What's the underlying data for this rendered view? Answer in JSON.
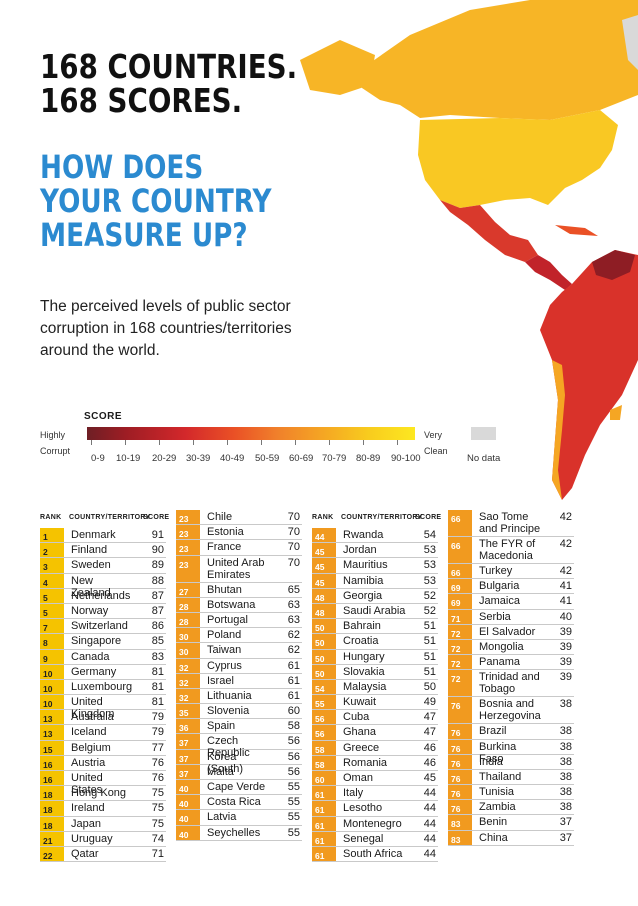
{
  "headline": {
    "line1": "168 COUNTRIES.",
    "line2": "168 SCORES."
  },
  "question": {
    "line1": "HOW DOES",
    "line2": "YOUR COUNTRY",
    "line3": "MEASURE UP?"
  },
  "intro": {
    "line1": "The perceived levels of public sector",
    "line2": "corruption in 168 countries/territories",
    "line3": "around the world."
  },
  "legend": {
    "title": "SCORE",
    "low_line1": "Highly",
    "low_line2": "Corrupt",
    "high_line1": "Very",
    "high_line2": "Clean",
    "ranges": [
      "0-9",
      "10-19",
      "20-29",
      "30-39",
      "40-49",
      "50-59",
      "60-69",
      "70-79",
      "80-89",
      "90-100"
    ],
    "no_data": "No data",
    "colors": [
      "#6e1f25",
      "#9e1d24",
      "#c1232a",
      "#d9322a",
      "#ea5126",
      "#f0802b",
      "#f5a623",
      "#f8cc1e",
      "#fbe11f",
      "#fde820"
    ],
    "no_data_color": "#d9d9d9"
  },
  "table_headers": {
    "rank": "RANK",
    "country": "COUNTRY/TERRITORY",
    "score": "SCORE"
  },
  "colors": {
    "rank_high": "#f5c300",
    "rank_mid": "#f19a1f",
    "heading_blue": "#2b8ad0"
  },
  "columns": [
    [
      {
        "rank": "1",
        "name": "Denmark",
        "score": "91"
      },
      {
        "rank": "2",
        "name": "Finland",
        "score": "90"
      },
      {
        "rank": "3",
        "name": "Sweden",
        "score": "89"
      },
      {
        "rank": "4",
        "name": "New Zealand",
        "score": "88"
      },
      {
        "rank": "5",
        "name": "Netherlands",
        "score": "87"
      },
      {
        "rank": "5",
        "name": "Norway",
        "score": "87"
      },
      {
        "rank": "7",
        "name": "Switzerland",
        "score": "86"
      },
      {
        "rank": "8",
        "name": "Singapore",
        "score": "85"
      },
      {
        "rank": "9",
        "name": "Canada",
        "score": "83"
      },
      {
        "rank": "10",
        "name": "Germany",
        "score": "81"
      },
      {
        "rank": "10",
        "name": "Luxembourg",
        "score": "81"
      },
      {
        "rank": "10",
        "name": "United Kingdom",
        "score": "81"
      },
      {
        "rank": "13",
        "name": "Australia",
        "score": "79"
      },
      {
        "rank": "13",
        "name": "Iceland",
        "score": "79"
      },
      {
        "rank": "15",
        "name": "Belgium",
        "score": "77"
      },
      {
        "rank": "16",
        "name": "Austria",
        "score": "76"
      },
      {
        "rank": "16",
        "name": "United States",
        "score": "76"
      },
      {
        "rank": "18",
        "name": "Hong Kong",
        "score": "75"
      },
      {
        "rank": "18",
        "name": "Ireland",
        "score": "75"
      },
      {
        "rank": "18",
        "name": "Japan",
        "score": "75"
      },
      {
        "rank": "21",
        "name": "Uruguay",
        "score": "74"
      },
      {
        "rank": "22",
        "name": "Qatar",
        "score": "71"
      }
    ],
    [
      {
        "rank": "23",
        "name": "Chile",
        "score": "70"
      },
      {
        "rank": "23",
        "name": "Estonia",
        "score": "70"
      },
      {
        "rank": "23",
        "name": "France",
        "score": "70"
      },
      {
        "rank": "23",
        "name": "United Arab Emirates",
        "score": "70"
      },
      {
        "rank": "27",
        "name": "Bhutan",
        "score": "65"
      },
      {
        "rank": "28",
        "name": "Botswana",
        "score": "63"
      },
      {
        "rank": "28",
        "name": "Portugal",
        "score": "63"
      },
      {
        "rank": "30",
        "name": "Poland",
        "score": "62"
      },
      {
        "rank": "30",
        "name": "Taiwan",
        "score": "62"
      },
      {
        "rank": "32",
        "name": "Cyprus",
        "score": "61"
      },
      {
        "rank": "32",
        "name": "Israel",
        "score": "61"
      },
      {
        "rank": "32",
        "name": "Lithuania",
        "score": "61"
      },
      {
        "rank": "35",
        "name": "Slovenia",
        "score": "60"
      },
      {
        "rank": "36",
        "name": "Spain",
        "score": "58"
      },
      {
        "rank": "37",
        "name": "Czech Republic",
        "score": "56"
      },
      {
        "rank": "37",
        "name": "Korea (South)",
        "score": "56"
      },
      {
        "rank": "37",
        "name": "Malta",
        "score": "56"
      },
      {
        "rank": "40",
        "name": "Cape Verde",
        "score": "55"
      },
      {
        "rank": "40",
        "name": "Costa Rica",
        "score": "55"
      },
      {
        "rank": "40",
        "name": "Latvia",
        "score": "55"
      },
      {
        "rank": "40",
        "name": "Seychelles",
        "score": "55"
      }
    ],
    [
      {
        "rank": "44",
        "name": "Rwanda",
        "score": "54"
      },
      {
        "rank": "45",
        "name": "Jordan",
        "score": "53"
      },
      {
        "rank": "45",
        "name": "Mauritius",
        "score": "53"
      },
      {
        "rank": "45",
        "name": "Namibia",
        "score": "53"
      },
      {
        "rank": "48",
        "name": "Georgia",
        "score": "52"
      },
      {
        "rank": "48",
        "name": "Saudi Arabia",
        "score": "52"
      },
      {
        "rank": "50",
        "name": "Bahrain",
        "score": "51"
      },
      {
        "rank": "50",
        "name": "Croatia",
        "score": "51"
      },
      {
        "rank": "50",
        "name": "Hungary",
        "score": "51"
      },
      {
        "rank": "50",
        "name": "Slovakia",
        "score": "51"
      },
      {
        "rank": "54",
        "name": "Malaysia",
        "score": "50"
      },
      {
        "rank": "55",
        "name": "Kuwait",
        "score": "49"
      },
      {
        "rank": "56",
        "name": "Cuba",
        "score": "47"
      },
      {
        "rank": "56",
        "name": "Ghana",
        "score": "47"
      },
      {
        "rank": "58",
        "name": "Greece",
        "score": "46"
      },
      {
        "rank": "58",
        "name": "Romania",
        "score": "46"
      },
      {
        "rank": "60",
        "name": "Oman",
        "score": "45"
      },
      {
        "rank": "61",
        "name": "Italy",
        "score": "44"
      },
      {
        "rank": "61",
        "name": "Lesotho",
        "score": "44"
      },
      {
        "rank": "61",
        "name": "Montenegro",
        "score": "44"
      },
      {
        "rank": "61",
        "name": "Senegal",
        "score": "44"
      },
      {
        "rank": "61",
        "name": "South Africa",
        "score": "44"
      }
    ],
    [
      {
        "rank": "66",
        "name": "Sao Tome and Principe",
        "score": "42"
      },
      {
        "rank": "66",
        "name": "The FYR of Macedonia",
        "score": "42"
      },
      {
        "rank": "66",
        "name": "Turkey",
        "score": "42"
      },
      {
        "rank": "69",
        "name": "Bulgaria",
        "score": "41"
      },
      {
        "rank": "69",
        "name": "Jamaica",
        "score": "41"
      },
      {
        "rank": "71",
        "name": "Serbia",
        "score": "40"
      },
      {
        "rank": "72",
        "name": "El Salvador",
        "score": "39"
      },
      {
        "rank": "72",
        "name": "Mongolia",
        "score": "39"
      },
      {
        "rank": "72",
        "name": "Panama",
        "score": "39"
      },
      {
        "rank": "72",
        "name": "Trinidad and Tobago",
        "score": "39"
      },
      {
        "rank": "76",
        "name": "Bosnia and Herzegovina",
        "score": "38"
      },
      {
        "rank": "76",
        "name": "Brazil",
        "score": "38"
      },
      {
        "rank": "76",
        "name": "Burkina Faso",
        "score": "38"
      },
      {
        "rank": "76",
        "name": "India",
        "score": "38"
      },
      {
        "rank": "76",
        "name": "Thailand",
        "score": "38"
      },
      {
        "rank": "76",
        "name": "Tunisia",
        "score": "38"
      },
      {
        "rank": "76",
        "name": "Zambia",
        "score": "38"
      },
      {
        "rank": "83",
        "name": "Benin",
        "score": "37"
      },
      {
        "rank": "83",
        "name": "China",
        "score": "37"
      }
    ]
  ]
}
